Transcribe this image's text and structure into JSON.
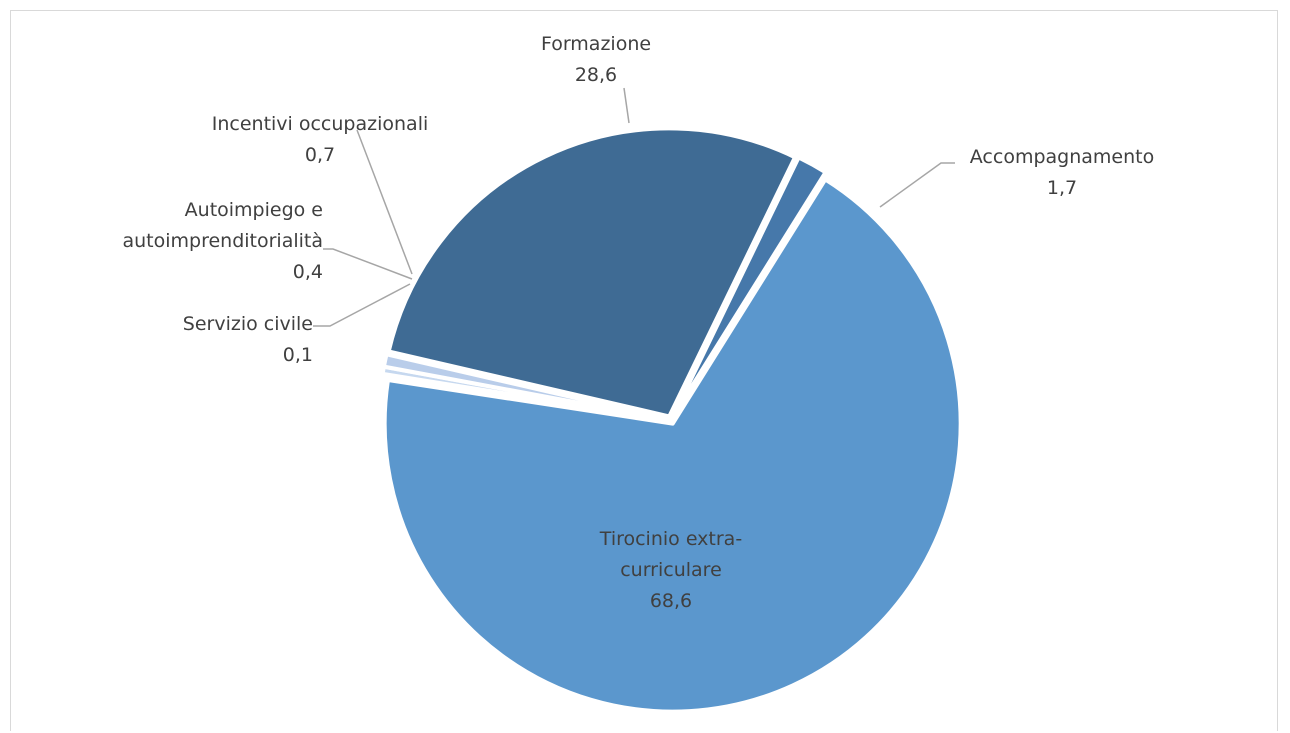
{
  "chart_data": {
    "type": "pie",
    "categories": [
      "Tirocinio extra-curriculare",
      "Servizio civile",
      "Autoimpiego e autoimprenditorialità",
      "Incentivi occupazionali",
      "Formazione",
      "Accompagnamento"
    ],
    "values": [
      68.6,
      0.1,
      0.4,
      0.7,
      28.6,
      1.7
    ],
    "value_labels": [
      "68,6",
      "0,1",
      "0,4",
      "0,7",
      "28,6",
      "1,7"
    ],
    "label_lines": [
      [
        "Tirocinio extra-",
        "curriculare"
      ],
      [
        "Servizio civile"
      ],
      [
        "Autoimpiego e",
        "autoimprenditorialità"
      ],
      [
        "Incentivi occupazionali"
      ],
      [
        "Formazione"
      ],
      [
        "Accompagnamento"
      ]
    ],
    "colors": [
      "#5b97cd",
      "#9ebde3",
      "#c6d8ef",
      "#b9cdea",
      "#3f6b94",
      "#4678aa"
    ],
    "exploded": true,
    "legend": "none",
    "title": ""
  }
}
